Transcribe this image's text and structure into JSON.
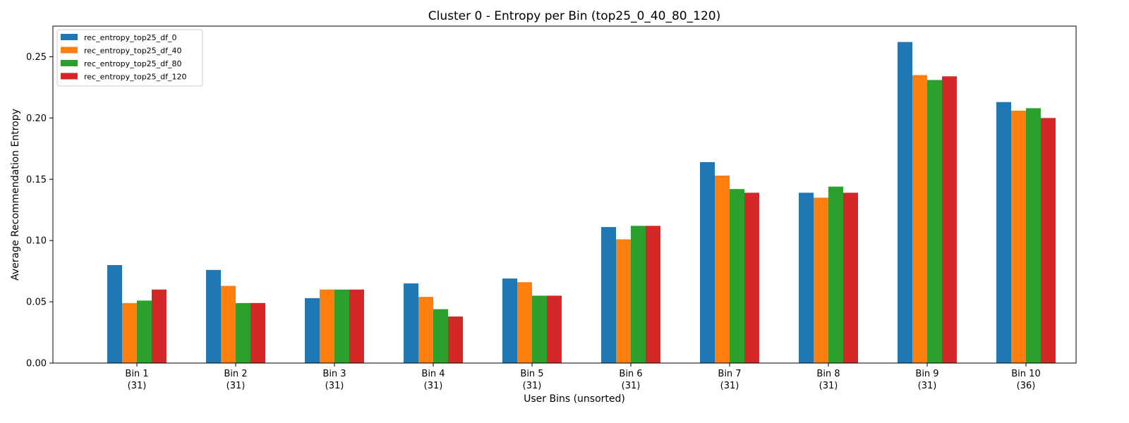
{
  "chart_data": {
    "type": "bar",
    "title": "Cluster 0 - Entropy per Bin (top25_0_40_80_120)",
    "xlabel": "User Bins (unsorted)",
    "ylabel": "Average Recommendation Entropy",
    "ylim": [
      0,
      0.275
    ],
    "yticks": [
      "0.00",
      "0.05",
      "0.10",
      "0.15",
      "0.20",
      "0.25"
    ],
    "ytick_values": [
      0,
      0.05,
      0.1,
      0.15,
      0.2,
      0.25
    ],
    "categories": [
      "Bin 1",
      "Bin 2",
      "Bin 3",
      "Bin 4",
      "Bin 5",
      "Bin 6",
      "Bin 7",
      "Bin 8",
      "Bin 9",
      "Bin 10"
    ],
    "category_counts": [
      "(31)",
      "(31)",
      "(31)",
      "(31)",
      "(31)",
      "(31)",
      "(31)",
      "(31)",
      "(31)",
      "(36)"
    ],
    "legend_position": "top-left",
    "grid": false,
    "series": [
      {
        "name": "rec_entropy_top25_df_0",
        "color": "#1f77b4",
        "values": [
          0.08,
          0.076,
          0.053,
          0.065,
          0.069,
          0.111,
          0.164,
          0.139,
          0.262,
          0.213
        ]
      },
      {
        "name": "rec_entropy_top25_df_40",
        "color": "#ff7f0e",
        "values": [
          0.049,
          0.063,
          0.06,
          0.054,
          0.066,
          0.101,
          0.153,
          0.135,
          0.235,
          0.206
        ]
      },
      {
        "name": "rec_entropy_top25_df_80",
        "color": "#2ca02c",
        "values": [
          0.051,
          0.049,
          0.06,
          0.044,
          0.055,
          0.112,
          0.142,
          0.144,
          0.231,
          0.208
        ]
      },
      {
        "name": "rec_entropy_top25_df_120",
        "color": "#d62728",
        "values": [
          0.06,
          0.049,
          0.06,
          0.038,
          0.055,
          0.112,
          0.139,
          0.139,
          0.234,
          0.2
        ]
      }
    ]
  }
}
